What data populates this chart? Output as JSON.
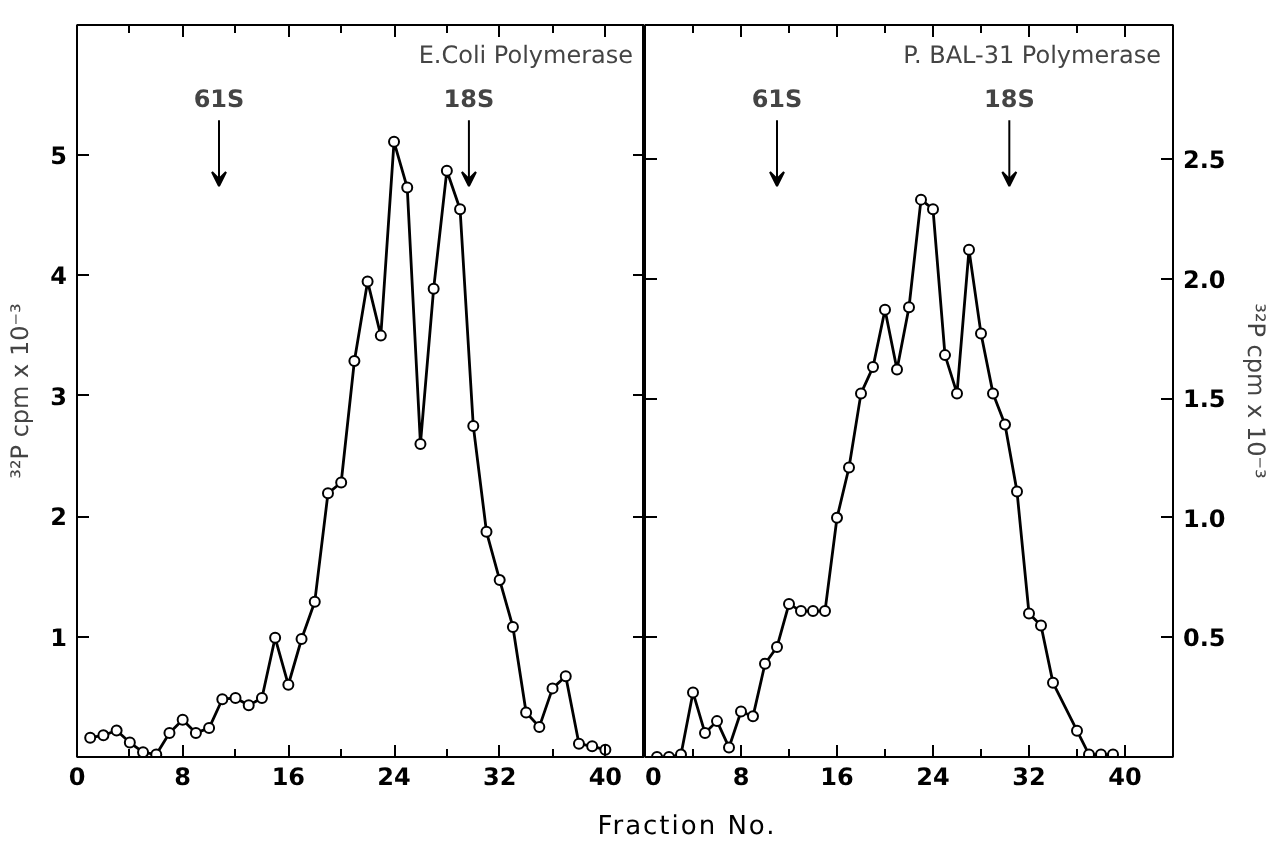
{
  "chart_data": [
    {
      "type": "line",
      "title": "E.Coli Polymerase",
      "ylabel": "³²P cpm x 10⁻³",
      "xlabel": "Fraction No.",
      "marker": "circle",
      "line_style": "solid",
      "xlim": [
        0,
        43
      ],
      "xticks": [
        0,
        8,
        16,
        24,
        32,
        40
      ],
      "ylim": [
        0,
        6.08
      ],
      "yticks": [
        1,
        2,
        3,
        4,
        5
      ],
      "annotations": [
        "61S",
        "18S"
      ],
      "series": [
        {
          "color": "#000000",
          "x": [
            1,
            2,
            3,
            4,
            5,
            6,
            7,
            8,
            9,
            10,
            11,
            12,
            13,
            14,
            15,
            16,
            17,
            18,
            19,
            20,
            21,
            22,
            23,
            24,
            25,
            26,
            27,
            28,
            29,
            30,
            31,
            32,
            33,
            34,
            35,
            36,
            37,
            38,
            39,
            40
          ],
          "values": [
            0.16,
            0.18,
            0.22,
            0.12,
            0.04,
            0.02,
            0.2,
            0.31,
            0.2,
            0.24,
            0.48,
            0.49,
            0.43,
            0.49,
            0.99,
            0.6,
            0.98,
            1.29,
            2.19,
            2.28,
            3.29,
            3.95,
            3.5,
            5.11,
            4.73,
            2.6,
            3.89,
            4.87,
            4.55,
            2.75,
            1.87,
            1.47,
            1.08,
            0.37,
            0.25,
            0.57,
            0.67,
            0.11,
            0.09,
            0.06
          ]
        }
      ]
    },
    {
      "type": "line",
      "title": "P. BAL-31 Polymerase",
      "y2label": "³²P cpm x 10⁻³",
      "marker": "circle",
      "line_style": "solid",
      "xlim": [
        0,
        44
      ],
      "xticks": [
        0,
        8,
        16,
        24,
        32,
        40
      ],
      "y2lim": [
        0,
        3.06
      ],
      "y2ticks": [
        0.5,
        {
          "value": 1.0,
          "label": "1.0"
        },
        1.5,
        {
          "value": 2.0,
          "label": "2.0"
        },
        2.5
      ],
      "annotations": [
        "61S",
        "18S"
      ],
      "series": [
        {
          "color": "#000000",
          "axis": "y2",
          "x": [
            1,
            2,
            3,
            4,
            5,
            6,
            7,
            8,
            9,
            10,
            11,
            12,
            13,
            14,
            15,
            16,
            17,
            18,
            19,
            20,
            21,
            22,
            23,
            24,
            25,
            26,
            27,
            28,
            29,
            30,
            31,
            32,
            33,
            34,
            36,
            37,
            38,
            39
          ],
          "values": [
            0,
            0,
            0.01,
            0.27,
            0.1,
            0.15,
            0.04,
            0.19,
            0.17,
            0.39,
            0.46,
            0.64,
            0.61,
            0.61,
            0.61,
            1.0,
            1.21,
            1.52,
            1.63,
            1.87,
            1.62,
            1.88,
            2.33,
            2.29,
            1.68,
            1.52,
            2.12,
            1.77,
            1.52,
            1.39,
            1.11,
            0.6,
            0.55,
            0.31,
            0.11,
            0.01,
            0.01,
            0.01
          ]
        }
      ]
    }
  ]
}
